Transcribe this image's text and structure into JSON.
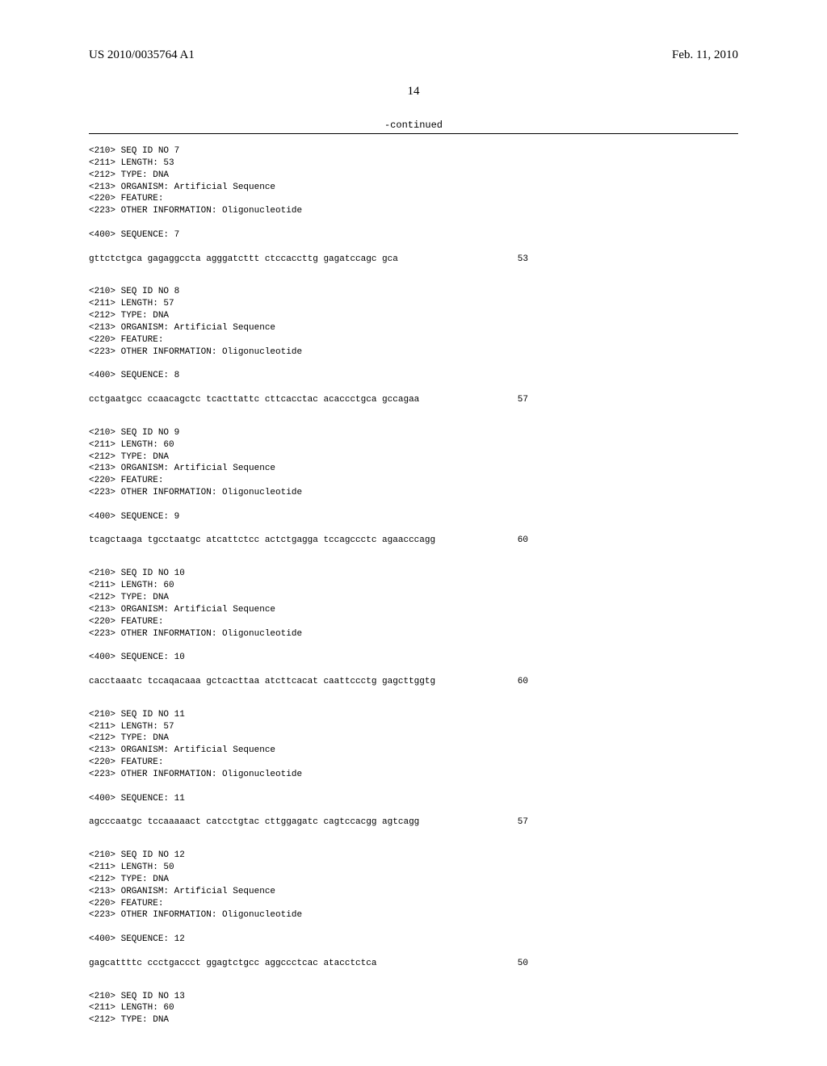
{
  "header": {
    "pub_number": "US 2010/0035764 A1",
    "pub_date": "Feb. 11, 2010"
  },
  "page_number": "14",
  "continued_label": "-continued",
  "sequences": [
    {
      "meta": [
        "<210> SEQ ID NO 7",
        "<211> LENGTH: 53",
        "<212> TYPE: DNA",
        "<213> ORGANISM: Artificial Sequence",
        "<220> FEATURE:",
        "<223> OTHER INFORMATION: Oligonucleotide"
      ],
      "seq_header": "<400> SEQUENCE: 7",
      "seq_line": "gttctctgca gagaggccta agggatcttt ctccaccttg gagatccagc gca",
      "length": "53"
    },
    {
      "meta": [
        "<210> SEQ ID NO 8",
        "<211> LENGTH: 57",
        "<212> TYPE: DNA",
        "<213> ORGANISM: Artificial Sequence",
        "<220> FEATURE:",
        "<223> OTHER INFORMATION: Oligonucleotide"
      ],
      "seq_header": "<400> SEQUENCE: 8",
      "seq_line": "cctgaatgcc ccaacagctc tcacttattc cttcacctac acaccctgca gccagaa",
      "length": "57"
    },
    {
      "meta": [
        "<210> SEQ ID NO 9",
        "<211> LENGTH: 60",
        "<212> TYPE: DNA",
        "<213> ORGANISM: Artificial Sequence",
        "<220> FEATURE:",
        "<223> OTHER INFORMATION: Oligonucleotide"
      ],
      "seq_header": "<400> SEQUENCE: 9",
      "seq_line": "tcagctaaga tgcctaatgc atcattctcc actctgagga tccagccctc agaacccagg",
      "length": "60"
    },
    {
      "meta": [
        "<210> SEQ ID NO 10",
        "<211> LENGTH: 60",
        "<212> TYPE: DNA",
        "<213> ORGANISM: Artificial Sequence",
        "<220> FEATURE:",
        "<223> OTHER INFORMATION: Oligonucleotide"
      ],
      "seq_header": "<400> SEQUENCE: 10",
      "seq_line": "cacctaaatc tccaqacaaa gctcacttaa atcttcacat caattccctg gagcttggtg",
      "length": "60"
    },
    {
      "meta": [
        "<210> SEQ ID NO 11",
        "<211> LENGTH: 57",
        "<212> TYPE: DNA",
        "<213> ORGANISM: Artificial Sequence",
        "<220> FEATURE:",
        "<223> OTHER INFORMATION: Oligonucleotide"
      ],
      "seq_header": "<400> SEQUENCE: 11",
      "seq_line": "agcccaatgc tccaaaaact catcctgtac cttggagatc cagtccacgg agtcagg",
      "length": "57"
    },
    {
      "meta": [
        "<210> SEQ ID NO 12",
        "<211> LENGTH: 50",
        "<212> TYPE: DNA",
        "<213> ORGANISM: Artificial Sequence",
        "<220> FEATURE:",
        "<223> OTHER INFORMATION: Oligonucleotide"
      ],
      "seq_header": "<400> SEQUENCE: 12",
      "seq_line": "gagcattttc ccctgaccct ggagtctgcc aggccctcac atacctctca",
      "length": "50"
    },
    {
      "meta": [
        "<210> SEQ ID NO 13",
        "<211> LENGTH: 60",
        "<212> TYPE: DNA"
      ],
      "seq_header": "",
      "seq_line": "",
      "length": ""
    }
  ]
}
